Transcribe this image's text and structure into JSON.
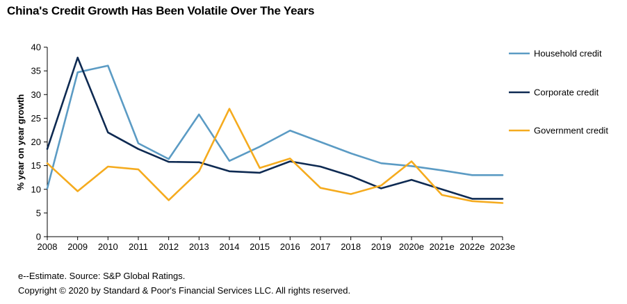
{
  "chart_data": {
    "type": "line",
    "title": "China's Credit Growth Has Been Volatile Over The Years",
    "xlabel": "",
    "ylabel": "% year on year growth",
    "categories": [
      "2008",
      "2009",
      "2010",
      "2011",
      "2012",
      "2013",
      "2014",
      "2015",
      "2016",
      "2017",
      "2018",
      "2019",
      "2020e",
      "2021e",
      "2022e",
      "2023e"
    ],
    "ylim": [
      0,
      40
    ],
    "yticks": [
      "0",
      "5",
      "10",
      "15",
      "20",
      "25",
      "30",
      "35",
      "40"
    ],
    "grid": false,
    "legend_position": "right",
    "series": [
      {
        "name": "Household credit",
        "color": "#5b9bc4",
        "values": [
          10.2,
          34.7,
          36.1,
          19.7,
          16.4,
          25.8,
          16.0,
          19.0,
          22.4,
          20.0,
          17.6,
          15.5,
          14.9,
          14.0,
          13.0,
          13.0
        ]
      },
      {
        "name": "Corporate credit",
        "color": "#0e2a52",
        "values": [
          18.5,
          37.8,
          22.0,
          18.5,
          15.8,
          15.7,
          13.8,
          13.5,
          15.9,
          14.8,
          12.8,
          10.2,
          12.0,
          10.0,
          8.0,
          8.0
        ]
      },
      {
        "name": "Government credit",
        "color": "#f5ab1e",
        "values": [
          15.5,
          9.6,
          14.8,
          14.2,
          7.7,
          13.8,
          27.0,
          14.5,
          16.5,
          10.3,
          9.0,
          10.8,
          15.9,
          8.8,
          7.5,
          7.1
        ]
      }
    ]
  },
  "notes": {
    "estimate": "e--Estimate. Source: S&P Global Ratings.",
    "copyright": "Copyright © 2020 by Standard & Poor's Financial Services LLC. All rights reserved."
  }
}
